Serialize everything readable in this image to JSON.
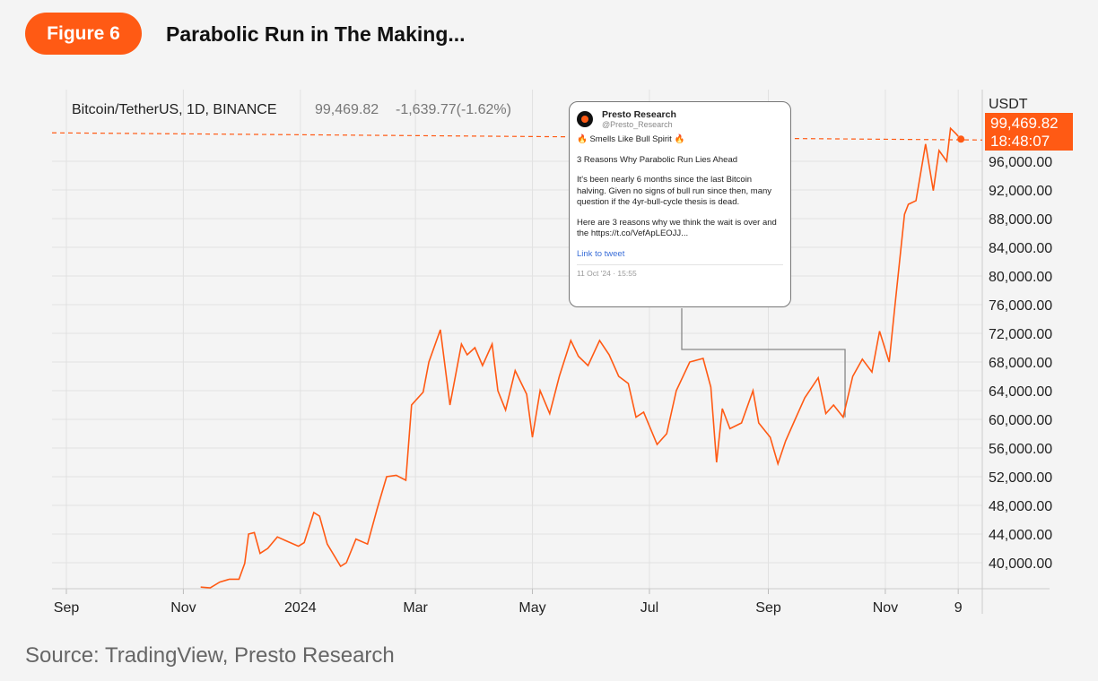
{
  "header": {
    "badge": "Figure 6",
    "title": "Parabolic Run in The Making..."
  },
  "source": "Source: TradingView, Presto Research",
  "tweet": {
    "name": "Presto Research",
    "handle": "@Presto_Research",
    "line1": "🔥 Smells Like Bull Spirit 🔥",
    "line2": "3 Reasons Why Parabolic Run Lies Ahead",
    "line3": "It's been nearly 6 months since the last Bitcoin halving. Given no signs of bull run since then, many question if the 4yr-bull-cycle thesis is dead.",
    "line4": "Here are 3 reasons why we think the wait is over and the https://t.co/VefApLEOJJ...",
    "link": "Link to tweet",
    "date": "11 Oct '24 · 15:55"
  },
  "colors": {
    "line": "#ff5a14",
    "accent": "#ff5a14"
  },
  "chart_data": {
    "type": "line",
    "title": "Bitcoin/TetherUS, 1D, BINANCE",
    "quote": {
      "last": "99,469.82",
      "change": "-1,639.77(-1.62%)",
      "time": "18:48:07"
    },
    "ylabel": "USDT",
    "ylim": [
      35000,
      107000
    ],
    "yticks": [
      40000,
      44000,
      48000,
      52000,
      56000,
      60000,
      64000,
      68000,
      72000,
      76000,
      80000,
      84000,
      88000,
      92000,
      96000
    ],
    "ytick_labels": [
      "40,000.00",
      "44,000.00",
      "48,000.00",
      "52,000.00",
      "56,000.00",
      "60,000.00",
      "64,000.00",
      "68,000.00",
      "72,000.00",
      "76,000.00",
      "80,000.00",
      "84,000.00",
      "88,000.00",
      "92,000.00",
      "96,000.00"
    ],
    "xticks": [
      {
        "date": "2023-09-01",
        "label": "Sep"
      },
      {
        "date": "2023-11-01",
        "label": "Nov"
      },
      {
        "date": "2024-01-01",
        "label": "2024"
      },
      {
        "date": "2024-03-01",
        "label": "Mar"
      },
      {
        "date": "2024-05-01",
        "label": "May"
      },
      {
        "date": "2024-07-01",
        "label": "Jul"
      },
      {
        "date": "2024-09-01",
        "label": "Sep"
      },
      {
        "date": "2024-11-01",
        "label": "Nov"
      },
      {
        "date": "2024-12-09",
        "label": "9"
      }
    ],
    "current_price": 99469.82,
    "annotation_date": "2024-10-11",
    "grid": true,
    "series": [
      {
        "name": "BTCUSDT",
        "points": [
          [
            "2023-11-10",
            36600
          ],
          [
            "2023-11-15",
            36500
          ],
          [
            "2023-11-20",
            37300
          ],
          [
            "2023-11-25",
            37700
          ],
          [
            "2023-11-30",
            37700
          ],
          [
            "2023-12-03",
            39900
          ],
          [
            "2023-12-05",
            44000
          ],
          [
            "2023-12-08",
            44200
          ],
          [
            "2023-12-11",
            41300
          ],
          [
            "2023-12-15",
            42000
          ],
          [
            "2023-12-20",
            43600
          ],
          [
            "2023-12-25",
            43000
          ],
          [
            "2023-12-31",
            42300
          ],
          [
            "2024-01-03",
            42800
          ],
          [
            "2024-01-08",
            47000
          ],
          [
            "2024-01-11",
            46500
          ],
          [
            "2024-01-15",
            42600
          ],
          [
            "2024-01-22",
            39500
          ],
          [
            "2024-01-25",
            40000
          ],
          [
            "2024-01-30",
            43300
          ],
          [
            "2024-02-05",
            42600
          ],
          [
            "2024-02-10",
            47500
          ],
          [
            "2024-02-15",
            52000
          ],
          [
            "2024-02-20",
            52200
          ],
          [
            "2024-02-25",
            51500
          ],
          [
            "2024-02-28",
            62000
          ],
          [
            "2024-03-05",
            63800
          ],
          [
            "2024-03-08",
            68000
          ],
          [
            "2024-03-14",
            72500
          ],
          [
            "2024-03-19",
            62000
          ],
          [
            "2024-03-25",
            70500
          ],
          [
            "2024-03-28",
            69000
          ],
          [
            "2024-04-01",
            70000
          ],
          [
            "2024-04-05",
            67500
          ],
          [
            "2024-04-10",
            70500
          ],
          [
            "2024-04-13",
            64000
          ],
          [
            "2024-04-17",
            61300
          ],
          [
            "2024-04-22",
            66800
          ],
          [
            "2024-04-28",
            63500
          ],
          [
            "2024-05-01",
            57500
          ],
          [
            "2024-05-05",
            64000
          ],
          [
            "2024-05-10",
            60800
          ],
          [
            "2024-05-15",
            66000
          ],
          [
            "2024-05-21",
            71000
          ],
          [
            "2024-05-25",
            68800
          ],
          [
            "2024-05-30",
            67500
          ],
          [
            "2024-06-05",
            71000
          ],
          [
            "2024-06-10",
            69000
          ],
          [
            "2024-06-15",
            66000
          ],
          [
            "2024-06-20",
            65000
          ],
          [
            "2024-06-24",
            60300
          ],
          [
            "2024-06-28",
            61000
          ],
          [
            "2024-07-05",
            56500
          ],
          [
            "2024-07-10",
            58000
          ],
          [
            "2024-07-15",
            64000
          ],
          [
            "2024-07-22",
            68000
          ],
          [
            "2024-07-29",
            68500
          ],
          [
            "2024-08-02",
            64500
          ],
          [
            "2024-08-05",
            54000
          ],
          [
            "2024-08-08",
            61500
          ],
          [
            "2024-08-12",
            58700
          ],
          [
            "2024-08-18",
            59500
          ],
          [
            "2024-08-24",
            64000
          ],
          [
            "2024-08-27",
            59500
          ],
          [
            "2024-09-02",
            57500
          ],
          [
            "2024-09-06",
            53800
          ],
          [
            "2024-09-10",
            57000
          ],
          [
            "2024-09-15",
            60000
          ],
          [
            "2024-09-20",
            63000
          ],
          [
            "2024-09-27",
            65800
          ],
          [
            "2024-10-01",
            60800
          ],
          [
            "2024-10-05",
            62000
          ],
          [
            "2024-10-10",
            60300
          ],
          [
            "2024-10-15",
            66000
          ],
          [
            "2024-10-20",
            68400
          ],
          [
            "2024-10-25",
            66600
          ],
          [
            "2024-10-29",
            72300
          ],
          [
            "2024-11-03",
            68000
          ],
          [
            "2024-11-06",
            75800
          ],
          [
            "2024-11-11",
            88600
          ],
          [
            "2024-11-13",
            90000
          ],
          [
            "2024-11-17",
            90500
          ],
          [
            "2024-11-22",
            98400
          ],
          [
            "2024-11-26",
            91900
          ],
          [
            "2024-11-29",
            97500
          ],
          [
            "2024-12-03",
            96000
          ],
          [
            "2024-12-05",
            100600
          ],
          [
            "2024-12-08",
            99800
          ],
          [
            "2024-12-09",
            99469.82
          ]
        ]
      }
    ]
  }
}
